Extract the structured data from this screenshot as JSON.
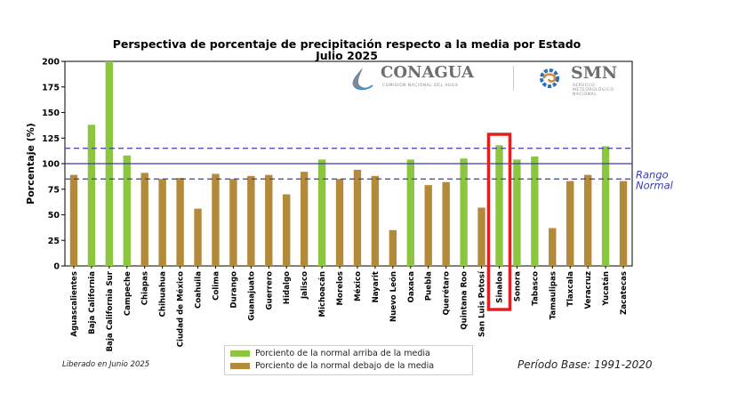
{
  "title_line1": "Perspectiva de porcentaje de precipitación respecto a la media por Estado",
  "title_line2": "Julio 2025",
  "logos": {
    "conagua_name": "CONAGUA",
    "conagua_sub": "COMISIÓN NACIONAL DEL AGUA",
    "smn_name": "SMN",
    "smn_sub": "SERVICIO METEOROLÓGICO NACIONAL"
  },
  "footer": {
    "released": "Liberado en Junio 2025",
    "base_period": "Período Base: 1991-2020"
  },
  "colors": {
    "above": "#8cc63f",
    "below": "#b38a3a",
    "reference": "#3b3bb0",
    "highlight": "#e02020"
  },
  "chart_data": {
    "type": "bar",
    "title": "Perspectiva de porcentaje de precipitación respecto a la media por Estado\nJulio 2025",
    "xlabel": "",
    "ylabel": "Porcentaje (%)",
    "ylim": [
      0,
      200
    ],
    "yticks": [
      0,
      25,
      50,
      75,
      100,
      125,
      150,
      175,
      200
    ],
    "grid": false,
    "categories": [
      "Aguascalientes",
      "Baja California",
      "Baja California Sur",
      "Campeche",
      "Chiapas",
      "Chihuahua",
      "Ciudad de México",
      "Coahuila",
      "Colima",
      "Durango",
      "Guanajuato",
      "Guerrero",
      "Hidalgo",
      "Jalisco",
      "Michoacán",
      "Morelos",
      "México",
      "Nayarit",
      "Nuevo León",
      "Oaxaca",
      "Puebla",
      "Querétaro",
      "Quintana Roo",
      "San Luis Potosí",
      "Sinaloa",
      "Sonora",
      "Tabasco",
      "Tamaulipas",
      "Tlaxcala",
      "Veracruz",
      "Yucatán",
      "Zacatecas"
    ],
    "values": [
      89,
      138,
      200,
      108,
      91,
      85,
      86,
      56,
      90,
      85,
      88,
      89,
      70,
      92,
      104,
      85,
      94,
      88,
      35,
      104,
      79,
      82,
      105,
      57,
      118,
      104,
      107,
      37,
      83,
      89,
      117,
      83
    ],
    "categories_above": [
      "Baja California",
      "Baja California Sur",
      "Campeche",
      "Michoacán",
      "Oaxaca",
      "Quintana Roo",
      "Sinaloa",
      "Sonora",
      "Tabasco",
      "Yucatán"
    ],
    "reference_lines": {
      "solid": 100,
      "dashed": [
        85,
        115
      ],
      "band_label": "Rango Normal"
    },
    "highlighted_category": "Sinaloa",
    "legend": {
      "placement": "bottom-center",
      "above": "Porciento de la normal arriba de la media",
      "below": "Porciento de la normal debajo de la media"
    }
  }
}
